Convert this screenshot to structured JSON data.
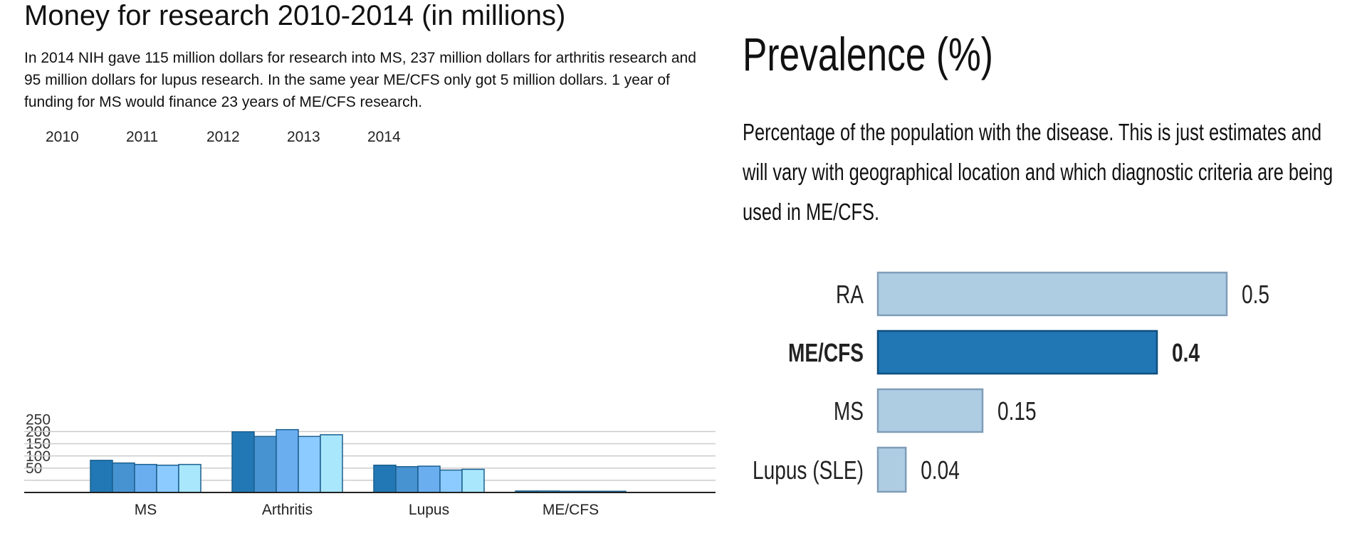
{
  "left_panel": {
    "title": "Money for research 2010-2014 (in millions)",
    "description": "In 2014 NIH gave 115 million dollars for research into MS, 237 million dollars for arthritis research and 95 million dollars for lupus research. In the same year ME/CFS only got 5 million dollars. 1 year of funding for MS would finance 23 years of ME/CFS research."
  },
  "right_panel": {
    "title": "Prevalence (%)",
    "description": "Percentage of the population with the disease. This is just estimates and will vary with geographical location and which diagnostic criteria are being used in ME/CFS."
  },
  "chart_data": [
    {
      "type": "bar",
      "title": "Money for research 2010-2014 (in millions)",
      "categories": [
        "MS",
        "Arthritis",
        "Lupus",
        "ME/CFS"
      ],
      "series": [
        {
          "name": "2010",
          "color": "#2178b4",
          "values": [
            132,
            249,
            112,
            6
          ]
        },
        {
          "name": "2011",
          "color": "#4793d1",
          "values": [
            121,
            230,
            106,
            6
          ]
        },
        {
          "name": "2012",
          "color": "#6aaef0",
          "values": [
            115,
            258,
            108,
            5
          ]
        },
        {
          "name": "2013",
          "color": "#8ccbff",
          "values": [
            112,
            230,
            92,
            5
          ]
        },
        {
          "name": "2014",
          "color": "#a9e7fc",
          "values": [
            115,
            237,
            95,
            5
          ]
        }
      ],
      "yticks": [
        50,
        100,
        150,
        200,
        250
      ],
      "ylim": [
        0,
        260
      ],
      "grid": true,
      "legend": "top-left"
    },
    {
      "type": "bar",
      "orientation": "horizontal",
      "title": "Prevalence (%)",
      "categories": [
        "RA",
        "ME/CFS",
        "MS",
        "Lupus (SLE)"
      ],
      "values": [
        0.5,
        0.4,
        0.15,
        0.04
      ],
      "value_labels": [
        "0.5",
        "0.4",
        "0.15",
        "0.04"
      ],
      "highlight": "ME/CFS",
      "colors": {
        "default": "#aecde3",
        "default_border": "#7f9db8",
        "highlight": "#2176b4",
        "highlight_border": "#0e4f7e"
      }
    }
  ]
}
